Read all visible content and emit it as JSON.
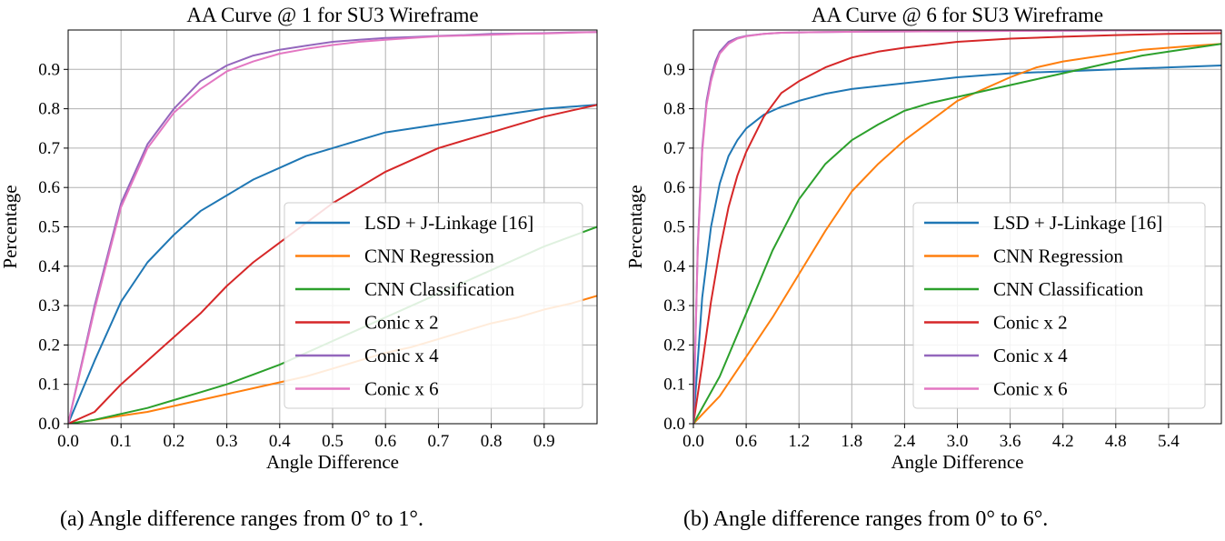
{
  "chart_data": [
    {
      "type": "line",
      "title": "AA Curve @ 1 for SU3 Wireframe",
      "xlabel": "Angle Difference",
      "ylabel": "Percentage",
      "xlim": [
        0,
        1.0
      ],
      "ylim": [
        0,
        1.0
      ],
      "xticks": [
        0.0,
        0.1,
        0.2,
        0.3,
        0.4,
        0.5,
        0.6,
        0.7,
        0.8,
        0.9
      ],
      "xtick_labels": [
        "0.0",
        "0.1",
        "0.2",
        "0.3",
        "0.4",
        "0.5",
        "0.6",
        "0.7",
        "0.8",
        "0.9"
      ],
      "yticks": [
        0.0,
        0.1,
        0.2,
        0.3,
        0.4,
        0.5,
        0.6,
        0.7,
        0.8,
        0.9
      ],
      "ytick_labels": [
        "0.0",
        "0.1",
        "0.2",
        "0.3",
        "0.4",
        "0.5",
        "0.6",
        "0.7",
        "0.8",
        "0.9"
      ],
      "grid": true,
      "legend_position": "center-right",
      "series": [
        {
          "name": "LSD + J-Linkage [16]",
          "color": "#1f77b4",
          "x": [
            0,
            0.05,
            0.1,
            0.15,
            0.2,
            0.25,
            0.3,
            0.35,
            0.4,
            0.45,
            0.5,
            0.55,
            0.6,
            0.65,
            0.7,
            0.75,
            0.8,
            0.85,
            0.9,
            0.95,
            1.0
          ],
          "y": [
            0,
            0.16,
            0.31,
            0.41,
            0.48,
            0.54,
            0.58,
            0.62,
            0.65,
            0.68,
            0.7,
            0.72,
            0.74,
            0.75,
            0.76,
            0.77,
            0.78,
            0.79,
            0.8,
            0.805,
            0.81
          ]
        },
        {
          "name": "CNN Regression",
          "color": "#ff7f0e",
          "x": [
            0,
            0.05,
            0.1,
            0.15,
            0.2,
            0.25,
            0.3,
            0.35,
            0.4,
            0.45,
            0.5,
            0.55,
            0.6,
            0.65,
            0.7,
            0.75,
            0.8,
            0.85,
            0.9,
            0.95,
            1.0
          ],
          "y": [
            0,
            0.01,
            0.02,
            0.03,
            0.045,
            0.06,
            0.075,
            0.09,
            0.105,
            0.12,
            0.14,
            0.16,
            0.18,
            0.195,
            0.215,
            0.235,
            0.255,
            0.27,
            0.29,
            0.305,
            0.325
          ]
        },
        {
          "name": "CNN Classification",
          "color": "#2ca02c",
          "x": [
            0,
            0.05,
            0.1,
            0.15,
            0.2,
            0.25,
            0.3,
            0.35,
            0.4,
            0.45,
            0.5,
            0.55,
            0.6,
            0.65,
            0.7,
            0.75,
            0.8,
            0.85,
            0.9,
            0.95,
            1.0
          ],
          "y": [
            0,
            0.01,
            0.025,
            0.04,
            0.06,
            0.08,
            0.1,
            0.125,
            0.15,
            0.18,
            0.21,
            0.24,
            0.27,
            0.3,
            0.33,
            0.36,
            0.39,
            0.42,
            0.45,
            0.475,
            0.5
          ]
        },
        {
          "name": "Conic x 2",
          "color": "#d62728",
          "x": [
            0,
            0.05,
            0.1,
            0.15,
            0.2,
            0.25,
            0.3,
            0.35,
            0.4,
            0.45,
            0.5,
            0.55,
            0.6,
            0.65,
            0.7,
            0.75,
            0.8,
            0.85,
            0.9,
            0.95,
            1.0
          ],
          "y": [
            0,
            0.03,
            0.1,
            0.16,
            0.22,
            0.28,
            0.35,
            0.41,
            0.46,
            0.51,
            0.56,
            0.6,
            0.64,
            0.67,
            0.7,
            0.72,
            0.74,
            0.76,
            0.78,
            0.795,
            0.81
          ]
        },
        {
          "name": "Conic x 4",
          "color": "#9467bd",
          "x": [
            0,
            0.05,
            0.1,
            0.15,
            0.2,
            0.25,
            0.3,
            0.35,
            0.4,
            0.45,
            0.5,
            0.55,
            0.6,
            0.65,
            0.7,
            0.75,
            0.8,
            0.85,
            0.9,
            0.95,
            1.0
          ],
          "y": [
            0,
            0.3,
            0.56,
            0.71,
            0.8,
            0.87,
            0.91,
            0.935,
            0.95,
            0.96,
            0.97,
            0.975,
            0.98,
            0.982,
            0.985,
            0.987,
            0.99,
            0.991,
            0.992,
            0.994,
            0.995
          ]
        },
        {
          "name": "Conic x 6",
          "color": "#e377c2",
          "x": [
            0,
            0.05,
            0.1,
            0.15,
            0.2,
            0.25,
            0.3,
            0.35,
            0.4,
            0.45,
            0.5,
            0.55,
            0.6,
            0.65,
            0.7,
            0.75,
            0.8,
            0.85,
            0.9,
            0.95,
            1.0
          ],
          "y": [
            0,
            0.29,
            0.55,
            0.7,
            0.79,
            0.85,
            0.895,
            0.92,
            0.94,
            0.952,
            0.962,
            0.97,
            0.975,
            0.98,
            0.984,
            0.986,
            0.988,
            0.99,
            0.991,
            0.993,
            0.995
          ]
        }
      ]
    },
    {
      "type": "line",
      "title": "AA Curve @ 6 for SU3 Wireframe",
      "xlabel": "Angle Difference",
      "ylabel": "Percentage",
      "xlim": [
        0,
        6.0
      ],
      "ylim": [
        0,
        1.0
      ],
      "xticks": [
        0.0,
        0.6,
        1.2,
        1.8,
        2.4,
        3.0,
        3.6,
        4.2,
        4.8,
        5.4
      ],
      "xtick_labels": [
        "0.0",
        "0.6",
        "1.2",
        "1.8",
        "2.4",
        "3.0",
        "3.6",
        "4.2",
        "4.8",
        "5.4"
      ],
      "yticks": [
        0.0,
        0.1,
        0.2,
        0.3,
        0.4,
        0.5,
        0.6,
        0.7,
        0.8,
        0.9
      ],
      "ytick_labels": [
        "0.0",
        "0.1",
        "0.2",
        "0.3",
        "0.4",
        "0.5",
        "0.6",
        "0.7",
        "0.8",
        "0.9"
      ],
      "grid": true,
      "legend_position": "center-right",
      "series": [
        {
          "name": "LSD + J-Linkage [16]",
          "color": "#1f77b4",
          "x": [
            0,
            0.1,
            0.2,
            0.3,
            0.4,
            0.5,
            0.6,
            0.8,
            1.0,
            1.2,
            1.5,
            1.8,
            2.4,
            3.0,
            3.6,
            4.2,
            4.8,
            5.4,
            6.0
          ],
          "y": [
            0,
            0.32,
            0.5,
            0.61,
            0.68,
            0.72,
            0.75,
            0.785,
            0.805,
            0.82,
            0.838,
            0.85,
            0.865,
            0.88,
            0.89,
            0.895,
            0.9,
            0.905,
            0.91
          ]
        },
        {
          "name": "CNN Regression",
          "color": "#ff7f0e",
          "x": [
            0,
            0.3,
            0.6,
            0.9,
            1.2,
            1.5,
            1.8,
            2.1,
            2.4,
            2.7,
            3.0,
            3.3,
            3.6,
            3.9,
            4.2,
            4.5,
            4.8,
            5.1,
            5.4,
            5.7,
            6.0
          ],
          "y": [
            0,
            0.07,
            0.17,
            0.27,
            0.38,
            0.49,
            0.59,
            0.66,
            0.72,
            0.77,
            0.82,
            0.85,
            0.88,
            0.905,
            0.92,
            0.93,
            0.94,
            0.95,
            0.955,
            0.96,
            0.965
          ]
        },
        {
          "name": "CNN Classification",
          "color": "#2ca02c",
          "x": [
            0,
            0.3,
            0.6,
            0.9,
            1.2,
            1.5,
            1.8,
            2.1,
            2.4,
            2.7,
            3.0,
            3.3,
            3.6,
            3.9,
            4.2,
            4.5,
            4.8,
            5.1,
            5.4,
            5.7,
            6.0
          ],
          "y": [
            0,
            0.12,
            0.28,
            0.44,
            0.57,
            0.66,
            0.72,
            0.76,
            0.795,
            0.815,
            0.83,
            0.845,
            0.86,
            0.875,
            0.89,
            0.905,
            0.92,
            0.935,
            0.945,
            0.955,
            0.965
          ]
        },
        {
          "name": "Conic x 2",
          "color": "#d62728",
          "x": [
            0,
            0.1,
            0.2,
            0.3,
            0.4,
            0.5,
            0.6,
            0.8,
            1.0,
            1.2,
            1.5,
            1.8,
            2.1,
            2.4,
            3.0,
            3.6,
            4.2,
            4.8,
            5.4,
            6.0
          ],
          "y": [
            0,
            0.15,
            0.31,
            0.44,
            0.55,
            0.63,
            0.69,
            0.78,
            0.84,
            0.87,
            0.905,
            0.93,
            0.945,
            0.955,
            0.97,
            0.978,
            0.983,
            0.987,
            0.99,
            0.992
          ]
        },
        {
          "name": "Conic x 4",
          "color": "#9467bd",
          "x": [
            0,
            0.05,
            0.1,
            0.15,
            0.2,
            0.25,
            0.3,
            0.4,
            0.5,
            0.6,
            0.8,
            1.0,
            1.5,
            2.0,
            3.0,
            4.0,
            5.0,
            6.0
          ],
          "y": [
            0,
            0.45,
            0.7,
            0.82,
            0.88,
            0.92,
            0.945,
            0.97,
            0.98,
            0.985,
            0.99,
            0.993,
            0.995,
            0.996,
            0.997,
            0.998,
            0.999,
            0.999
          ]
        },
        {
          "name": "Conic x 6",
          "color": "#e377c2",
          "x": [
            0,
            0.05,
            0.1,
            0.15,
            0.2,
            0.25,
            0.3,
            0.4,
            0.5,
            0.6,
            0.8,
            1.0,
            1.5,
            2.0,
            3.0,
            4.0,
            5.0,
            6.0
          ],
          "y": [
            0,
            0.44,
            0.69,
            0.81,
            0.87,
            0.91,
            0.94,
            0.965,
            0.978,
            0.984,
            0.99,
            0.993,
            0.995,
            0.996,
            0.997,
            0.998,
            0.999,
            0.999
          ]
        }
      ]
    }
  ],
  "captions": {
    "a": "(a) Angle difference ranges from 0° to 1°.",
    "b": "(b) Angle difference ranges from 0° to 6°."
  }
}
